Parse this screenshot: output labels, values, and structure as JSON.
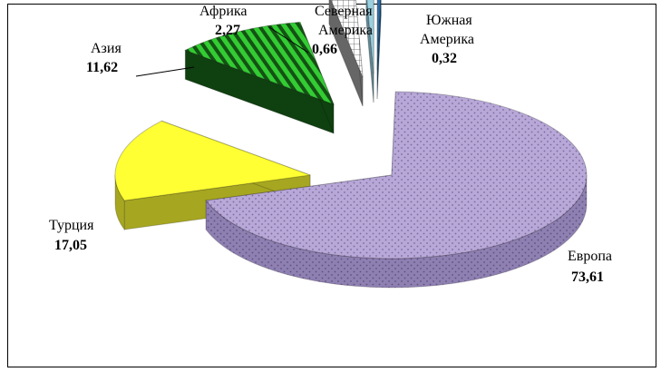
{
  "chart_data": {
    "type": "pie",
    "style": "3d-exploded",
    "title": "",
    "slices": [
      {
        "label": "Европа",
        "value": 73.61,
        "value_text": "73,61",
        "color": "#b8a8d8",
        "pattern": "dots"
      },
      {
        "label": "Турция",
        "value": 17.05,
        "value_text": "17,05",
        "color": "#ffff33",
        "pattern": "none"
      },
      {
        "label": "Азия",
        "value": 11.62,
        "value_text": "11,62",
        "color": "#33cc33",
        "pattern": "stripes"
      },
      {
        "label": "Африка",
        "value": 2.27,
        "value_text": "2,27",
        "color": "#cccccc",
        "pattern": "grid"
      },
      {
        "label": "Северная Америка",
        "label_lines": [
          "Северная",
          "Америка"
        ],
        "value": 0.66,
        "value_text": "0,66",
        "color": "#9ad0e0",
        "pattern": "none"
      },
      {
        "label": "Южная Америка",
        "label_lines": [
          "Южная",
          "Америка"
        ],
        "value": 0.32,
        "value_text": "0,32",
        "color": "#2a6fa8",
        "pattern": "none"
      }
    ],
    "legend": "none",
    "data_labels": "category-and-value"
  }
}
